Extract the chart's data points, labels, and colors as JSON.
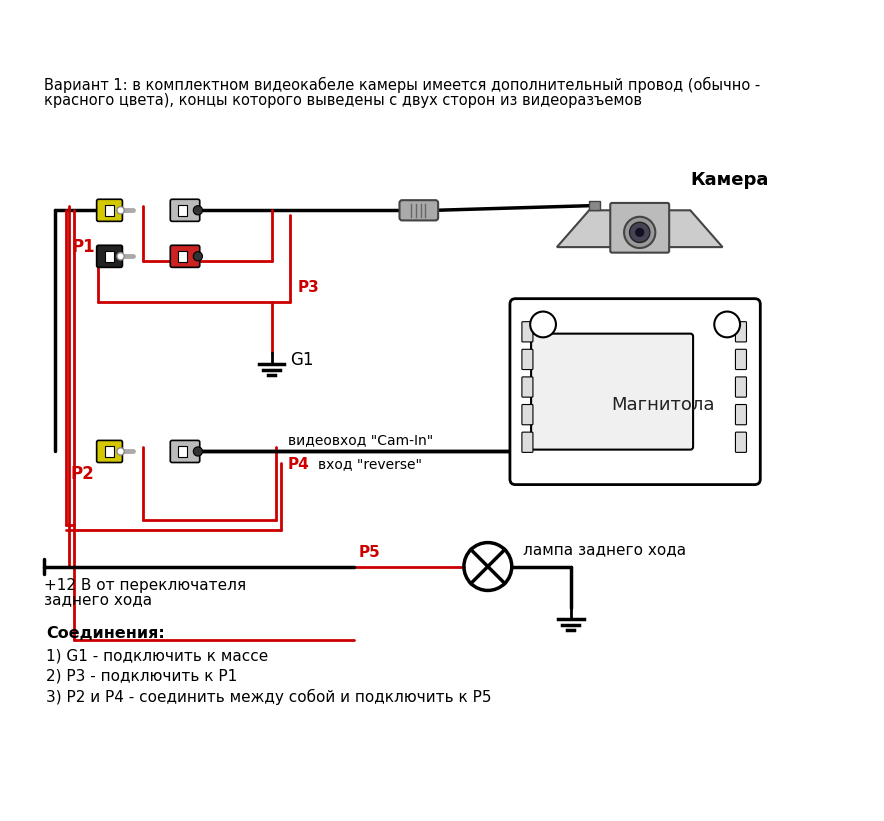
{
  "title_line1": "Вариант 1: в комплектном видеокабеле камеры имеется дополнительный провод (обычно -",
  "title_line2": "красного цвета), концы которого выведены с двух сторон из видеоразъемов",
  "label_camera": "Камера",
  "label_magnitola": "Магнитола",
  "label_lamp": "лампа заднего хода",
  "label_plus12_1": "+12 В от переключателя",
  "label_plus12_2": "заднего хода",
  "label_video_in": "видеовход \"Cam-In\"",
  "label_reverse_in": "вход \"reverse\"",
  "label_P1": "P1",
  "label_P2": "P2",
  "label_P3": "Р3",
  "label_P4": "Р4",
  "label_P5": "Р5",
  "label_G1": "G1",
  "connections_title": "Соединения:",
  "conn1": "1) G1 - подключить к массе",
  "conn2": "2) Р3 - подключить к Р1",
  "conn3": "3) Р2 и Р4 - соединить между собой и подключить к Р5",
  "bg_color": "#ffffff",
  "black": "#000000",
  "red": "#cc0000",
  "yellow": "#d4c800",
  "dark_gray": "#444444",
  "mid_gray": "#888888",
  "light_gray": "#cccccc"
}
